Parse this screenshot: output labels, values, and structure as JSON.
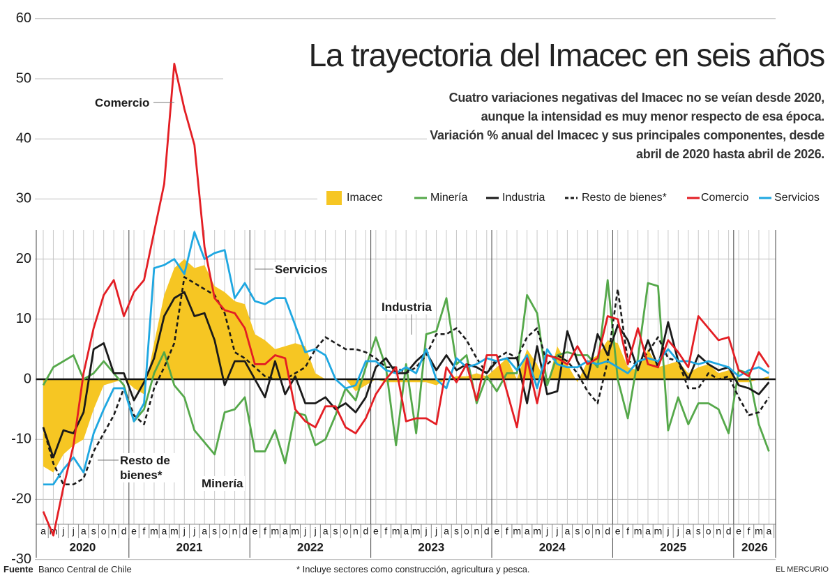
{
  "chart_data": {
    "type": "line",
    "title": "La trayectoria del Imacec en seis años",
    "subtitle": "Cuatro variaciones negativas del Imacec no se veían desde 2020, aunque la intensidad es muy menor respecto de esa época. Variación % anual del Imacec y sus principales componentes, desde abril de 2020 hasta abril de 2026.",
    "categories": [
      "a",
      "m",
      "j",
      "j",
      "a",
      "s",
      "o",
      "n",
      "d",
      "e",
      "f",
      "m",
      "a",
      "m",
      "j",
      "j",
      "a",
      "s",
      "o",
      "n",
      "d",
      "e",
      "f",
      "m",
      "a",
      "m",
      "j",
      "j",
      "a",
      "s",
      "o",
      "n",
      "d",
      "e",
      "f",
      "m",
      "a",
      "m",
      "j",
      "j",
      "a",
      "s",
      "o",
      "n",
      "d",
      "e",
      "f",
      "m",
      "a",
      "m",
      "j",
      "j",
      "a",
      "s",
      "o",
      "n",
      "d",
      "e",
      "f",
      "m",
      "a",
      "m",
      "j",
      "j",
      "a",
      "s",
      "o",
      "n",
      "d",
      "e",
      "f",
      "m",
      "a"
    ],
    "years": [
      "2020",
      "2021",
      "2022",
      "2023",
      "2024",
      "2025",
      "2026"
    ],
    "ylim": [
      -30,
      60
    ],
    "yticks": [
      -30,
      -20,
      -10,
      0,
      10,
      20,
      30,
      40,
      50,
      60
    ],
    "grid": true,
    "series": [
      {
        "name": "Imacec",
        "color": "#f6c623",
        "style": "area",
        "values": [
          -14.5,
          -15.5,
          -12.5,
          -11,
          -10,
          -5,
          -1,
          -0.5,
          0,
          -1.5,
          -2.5,
          6,
          14,
          18.5,
          20,
          18.5,
          19,
          15.5,
          14.5,
          13,
          12.5,
          7.5,
          6.5,
          5,
          5.5,
          6,
          5.5,
          1,
          0,
          0,
          0,
          -2,
          -1,
          0,
          -0.5,
          -0.5,
          -0.5,
          -0.5,
          -0.5,
          -1,
          0,
          0.5,
          0.5,
          1,
          0.5,
          2,
          3.5,
          0,
          5,
          2.5,
          -1,
          5.5,
          2.5,
          -0.5,
          3,
          4,
          6.5,
          6,
          2,
          1.5,
          5,
          2,
          2.5,
          3,
          1,
          2,
          2.5,
          1,
          1.5,
          -0.5,
          -0.5,
          0,
          0.5
        ]
      },
      {
        "name": "Minería",
        "color": "#55a84a",
        "style": "solid",
        "values": [
          -1,
          2,
          3,
          4,
          0,
          1,
          3,
          1,
          -1,
          -7,
          -5,
          1,
          4.5,
          -1,
          -3,
          -8.5,
          -10.5,
          -12.5,
          -5.5,
          -5,
          -3,
          -12,
          -12,
          -8.5,
          -14,
          -5.5,
          -6,
          -11,
          -10,
          -6,
          -1.5,
          -3.5,
          2,
          7,
          2,
          -11,
          2.5,
          -9,
          7.5,
          8,
          13.5,
          2.5,
          4,
          -4,
          0.5,
          -2,
          1,
          1,
          14,
          11,
          -1,
          4,
          4.5,
          4,
          4,
          2,
          16.5,
          0,
          -6.5,
          3.5,
          16,
          15.5,
          -8.5,
          -3,
          -7.5,
          -4,
          -4,
          -5,
          -9,
          1.5,
          1,
          -7.5,
          -12
        ]
      },
      {
        "name": "Industria",
        "color": "#1a1a1a",
        "style": "solid",
        "values": [
          -8,
          -13,
          -8.5,
          -9,
          -5.5,
          5,
          6,
          1,
          1,
          -3.5,
          -0.5,
          3.5,
          10.5,
          13.5,
          14.5,
          10.5,
          11,
          6.5,
          -1,
          3,
          3,
          0,
          -3,
          3,
          -2.5,
          0.5,
          -4,
          -4,
          -3,
          -5,
          -4,
          -5.5,
          -3,
          2,
          3.5,
          1,
          1,
          3,
          4.5,
          1.5,
          4,
          1.5,
          2.5,
          2,
          1,
          3,
          3.5,
          3.5,
          -4,
          5.5,
          -2.5,
          -2,
          8,
          3,
          0,
          7.5,
          4,
          9,
          6.5,
          1.5,
          6.5,
          2,
          9.5,
          3,
          0,
          4,
          2.5,
          1.5,
          2,
          -1,
          -1.5,
          -2.5,
          -0.5
        ]
      },
      {
        "name": "Resto de bienes*",
        "color": "#1a1a1a",
        "style": "dashed",
        "values": [
          -8,
          -14,
          -17.5,
          -17.5,
          -16.5,
          -12,
          -9,
          -6,
          -1.5,
          -6,
          -7.5,
          -1.5,
          2,
          6,
          17,
          16,
          15,
          14,
          11,
          4.5,
          3.5,
          2,
          0.5,
          0,
          0,
          1,
          2,
          5,
          7,
          6,
          5,
          5,
          4.5,
          3.5,
          2,
          2,
          1,
          2,
          4,
          7.5,
          7.5,
          8.5,
          6.5,
          3.5,
          1,
          3.5,
          4.5,
          3.5,
          7,
          8.5,
          2.5,
          4,
          3,
          1,
          -2,
          -4,
          3,
          15,
          3,
          2.5,
          4.5,
          7,
          3.5,
          3,
          -1.5,
          -1.5,
          1,
          0,
          0.5,
          -3,
          -6,
          -5.5,
          -3
        ]
      },
      {
        "name": "Comercio",
        "color": "#e31e24",
        "style": "solid",
        "values": [
          -22,
          -26,
          -18,
          -11,
          1,
          8.5,
          14,
          16.5,
          10.5,
          14.5,
          16.5,
          24.5,
          32.5,
          52.5,
          45,
          39,
          22,
          13.5,
          11.5,
          11,
          8.5,
          2.5,
          2.5,
          4,
          3.5,
          -5,
          -7,
          -8,
          -4.5,
          -4.5,
          -8,
          -9,
          -6.5,
          -2.5,
          0,
          2,
          -7,
          -6.5,
          -6.5,
          -7.5,
          2,
          -0.5,
          2.5,
          -3.5,
          4,
          4,
          -2,
          -8,
          3.5,
          -4,
          4,
          3.5,
          2.5,
          5.5,
          2.5,
          3.5,
          10.5,
          10,
          2.5,
          8.5,
          2.5,
          2,
          6.5,
          4.5,
          2,
          10.5,
          8.5,
          6.5,
          7,
          1.5,
          0.5,
          4.5,
          2
        ]
      },
      {
        "name": "Servicios",
        "color": "#1ea7e1",
        "style": "solid",
        "values": [
          -17.5,
          -17.5,
          -15,
          -13,
          -15.5,
          -9,
          -5,
          -1.5,
          -1.5,
          -7,
          -4,
          18.5,
          19,
          20,
          17.5,
          24.5,
          20,
          21,
          21.5,
          13.5,
          16,
          13,
          12.5,
          13.5,
          13.5,
          9,
          4.5,
          5,
          4,
          0,
          -1.5,
          -1,
          3,
          3,
          1.5,
          1,
          2,
          1,
          5,
          0,
          -1.5,
          3.5,
          2,
          2.5,
          3.5,
          3,
          3.5,
          1.5,
          4,
          -1.5,
          5,
          2.5,
          2,
          2,
          3,
          2.5,
          3,
          2,
          1,
          3,
          3.5,
          3,
          5,
          3,
          3,
          2.5,
          3,
          2.5,
          2,
          0.5,
          1.5,
          2,
          1
        ]
      }
    ],
    "annotations": [
      "Comercio",
      "Servicios",
      "Industria",
      "Resto de bienes*",
      "Minería"
    ],
    "footer": {
      "source_label": "Fuente",
      "source": "Banco Central de Chile",
      "note": "* Incluye sectores como construcción, agricultura y pesca.",
      "brand": "EL MERCURIO"
    }
  }
}
